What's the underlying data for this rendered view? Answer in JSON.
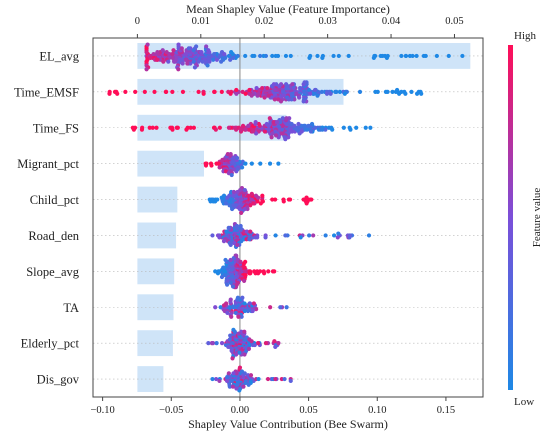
{
  "chart_data": {
    "type": "scatter",
    "subtype": "shap-beeswarm-with-importance-bars",
    "title": "",
    "top_axis": {
      "label": "Mean Shapley Value (Feature Importance)",
      "ticks": [
        0,
        0.01,
        0.02,
        0.03,
        0.04,
        0.05
      ],
      "tick_labels": [
        "0",
        "0.01",
        "0.02",
        "0.03",
        "0.04",
        "0.05"
      ],
      "range": [
        -0.007,
        0.0545
      ]
    },
    "bottom_axis": {
      "label": "Shapley Value Contribution (Bee Swarm)",
      "ticks": [
        -0.1,
        -0.05,
        0.0,
        0.05,
        0.1,
        0.15
      ],
      "tick_labels": [
        "−0.10",
        "−0.05",
        "0.00",
        "0.05",
        "0.10",
        "0.15"
      ],
      "range": [
        -0.107,
        0.177
      ]
    },
    "colorbar": {
      "label": "Feature value",
      "high_label": "High",
      "low_label": "Low",
      "colors": [
        "#1e88e5",
        "#7b4fd9",
        "#ff0d57"
      ]
    },
    "bar_color": "#cfe4f8",
    "features": [
      {
        "name": "EL_avg",
        "importance": 0.0525,
        "swarm": {
          "min": -0.068,
          "max": 0.162,
          "peak": -0.04,
          "spread": 0.03,
          "count": 260,
          "high_side": "low"
        }
      },
      {
        "name": "Time_EMSF",
        "importance": 0.0325,
        "swarm": {
          "min": -0.095,
          "max": 0.132,
          "peak": 0.032,
          "spread": 0.028,
          "count": 240,
          "high_side": "low"
        }
      },
      {
        "name": "Time_FS",
        "importance": 0.0235,
        "swarm": {
          "min": -0.078,
          "max": 0.095,
          "peak": 0.03,
          "spread": 0.025,
          "count": 220,
          "high_side": "low"
        }
      },
      {
        "name": "Migrant_pct",
        "importance": 0.0105,
        "swarm": {
          "min": -0.025,
          "max": 0.028,
          "peak": -0.007,
          "spread": 0.008,
          "count": 90,
          "high_side": "low"
        }
      },
      {
        "name": "Child_pct",
        "importance": 0.0063,
        "swarm": {
          "min": -0.022,
          "max": 0.052,
          "peak": 0.0,
          "spread": 0.014,
          "count": 150,
          "high_side": "high"
        }
      },
      {
        "name": "Road_den",
        "importance": 0.0061,
        "swarm": {
          "min": -0.02,
          "max": 0.094,
          "peak": -0.002,
          "spread": 0.012,
          "count": 130,
          "high_side": "mid"
        }
      },
      {
        "name": "Slope_avg",
        "importance": 0.0058,
        "swarm": {
          "min": -0.018,
          "max": 0.025,
          "peak": -0.004,
          "spread": 0.008,
          "count": 150,
          "high_side": "high"
        }
      },
      {
        "name": "TA",
        "importance": 0.0057,
        "swarm": {
          "min": -0.018,
          "max": 0.034,
          "peak": 0.0,
          "spread": 0.01,
          "count": 90,
          "high_side": "mid"
        }
      },
      {
        "name": "Elderly_pct",
        "importance": 0.0056,
        "swarm": {
          "min": -0.023,
          "max": 0.028,
          "peak": 0.0,
          "spread": 0.01,
          "count": 130,
          "high_side": "mid"
        }
      },
      {
        "name": "Dis_gov",
        "importance": 0.0041,
        "swarm": {
          "min": -0.02,
          "max": 0.037,
          "peak": 0.0,
          "spread": 0.01,
          "count": 100,
          "high_side": "mid"
        }
      }
    ]
  }
}
